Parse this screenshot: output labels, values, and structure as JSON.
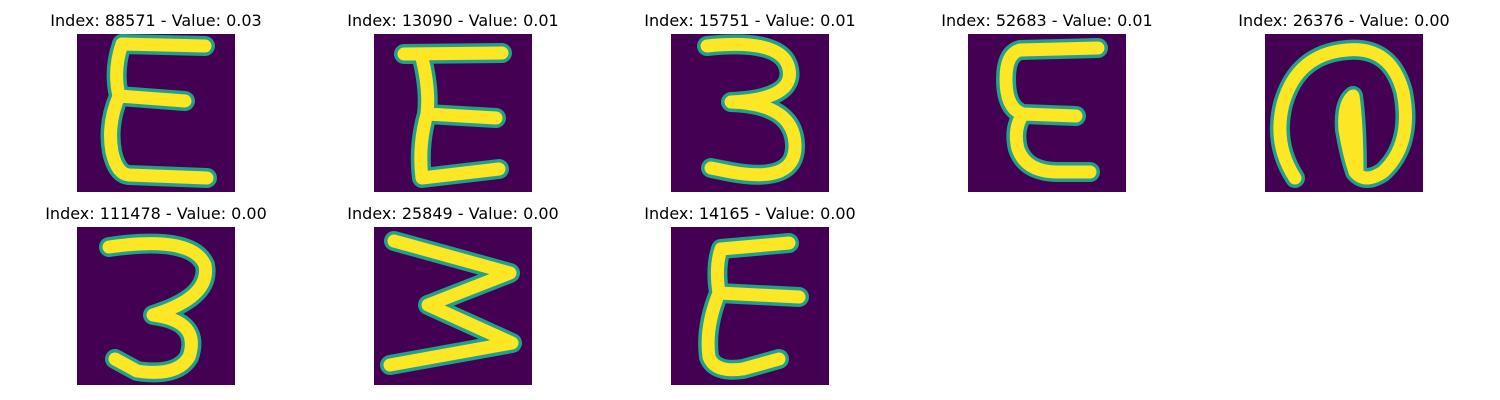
{
  "colors": {
    "background": "#440154",
    "stroke_fill": "#fde725",
    "stroke_edge": "#21a18a"
  },
  "panels": [
    {
      "title": "Index: 88571 - Value: 0.03",
      "glyph": "handwritten-E"
    },
    {
      "title": "Index: 13090 - Value: 0.01",
      "glyph": "handwritten-E"
    },
    {
      "title": "Index: 15751 - Value: 0.01",
      "glyph": "handwritten-3"
    },
    {
      "title": "Index: 52683 - Value: 0.01",
      "glyph": "handwritten-E"
    },
    {
      "title": "Index: 26376 - Value: 0.00",
      "glyph": "handwritten-loop"
    },
    {
      "title": "Index: 111478 - Value: 0.00",
      "glyph": "handwritten-3"
    },
    {
      "title": "Index: 25849 - Value: 0.00",
      "glyph": "handwritten-W-rotated"
    },
    {
      "title": "Index: 14165 - Value: 0.00",
      "glyph": "handwritten-E"
    }
  ]
}
